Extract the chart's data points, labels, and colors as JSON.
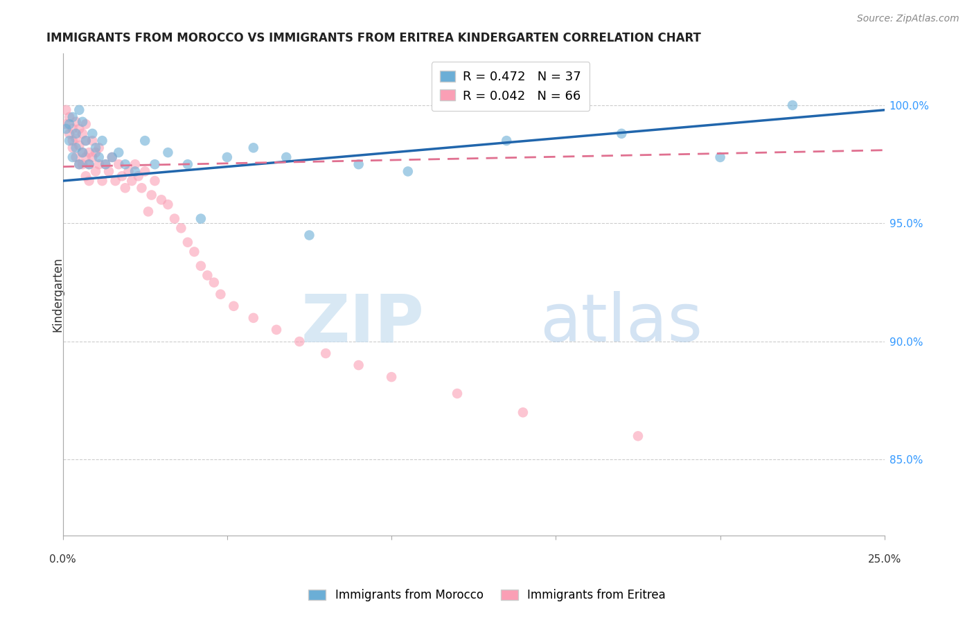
{
  "title": "IMMIGRANTS FROM MOROCCO VS IMMIGRANTS FROM ERITREA KINDERGARTEN CORRELATION CHART",
  "source": "Source: ZipAtlas.com",
  "ylabel": "Kindergarten",
  "ytick_labels": [
    "100.0%",
    "95.0%",
    "90.0%",
    "85.0%"
  ],
  "ytick_values": [
    1.0,
    0.95,
    0.9,
    0.85
  ],
  "xlim": [
    0.0,
    0.25
  ],
  "ylim": [
    0.818,
    1.022
  ],
  "legend_morocco": "R = 0.472   N = 37",
  "legend_eritrea": "R = 0.042   N = 66",
  "color_morocco": "#6baed6",
  "color_eritrea": "#fa9fb5",
  "line_color_morocco": "#2166ac",
  "line_color_eritrea": "#e07090",
  "morocco_x": [
    0.001,
    0.002,
    0.002,
    0.003,
    0.003,
    0.004,
    0.004,
    0.005,
    0.005,
    0.006,
    0.006,
    0.007,
    0.008,
    0.009,
    0.01,
    0.011,
    0.012,
    0.013,
    0.015,
    0.017,
    0.019,
    0.022,
    0.025,
    0.028,
    0.032,
    0.038,
    0.042,
    0.05,
    0.058,
    0.068,
    0.075,
    0.09,
    0.105,
    0.135,
    0.17,
    0.2,
    0.222
  ],
  "morocco_y": [
    0.99,
    0.985,
    0.992,
    0.978,
    0.995,
    0.982,
    0.988,
    0.975,
    0.998,
    0.98,
    0.993,
    0.985,
    0.975,
    0.988,
    0.982,
    0.978,
    0.985,
    0.975,
    0.978,
    0.98,
    0.975,
    0.972,
    0.985,
    0.975,
    0.98,
    0.975,
    0.952,
    0.978,
    0.982,
    0.978,
    0.945,
    0.975,
    0.972,
    0.985,
    0.988,
    0.978,
    1.0
  ],
  "eritrea_x": [
    0.001,
    0.001,
    0.002,
    0.002,
    0.003,
    0.003,
    0.003,
    0.004,
    0.004,
    0.004,
    0.005,
    0.005,
    0.005,
    0.006,
    0.006,
    0.006,
    0.007,
    0.007,
    0.007,
    0.007,
    0.008,
    0.008,
    0.008,
    0.009,
    0.009,
    0.01,
    0.01,
    0.011,
    0.011,
    0.012,
    0.013,
    0.014,
    0.015,
    0.016,
    0.017,
    0.018,
    0.019,
    0.02,
    0.021,
    0.022,
    0.023,
    0.024,
    0.025,
    0.026,
    0.027,
    0.028,
    0.03,
    0.032,
    0.034,
    0.036,
    0.038,
    0.04,
    0.042,
    0.044,
    0.046,
    0.048,
    0.052,
    0.058,
    0.065,
    0.072,
    0.08,
    0.09,
    0.1,
    0.12,
    0.14,
    0.175
  ],
  "eritrea_y": [
    0.998,
    0.992,
    0.988,
    0.995,
    0.982,
    0.99,
    0.985,
    0.978,
    0.993,
    0.986,
    0.975,
    0.99,
    0.983,
    0.98,
    0.988,
    0.975,
    0.985,
    0.978,
    0.992,
    0.97,
    0.975,
    0.98,
    0.968,
    0.985,
    0.978,
    0.98,
    0.972,
    0.975,
    0.982,
    0.968,
    0.975,
    0.972,
    0.978,
    0.968,
    0.975,
    0.97,
    0.965,
    0.972,
    0.968,
    0.975,
    0.97,
    0.965,
    0.972,
    0.955,
    0.962,
    0.968,
    0.96,
    0.958,
    0.952,
    0.948,
    0.942,
    0.938,
    0.932,
    0.928,
    0.925,
    0.92,
    0.915,
    0.91,
    0.905,
    0.9,
    0.895,
    0.89,
    0.885,
    0.878,
    0.87,
    0.86
  ]
}
